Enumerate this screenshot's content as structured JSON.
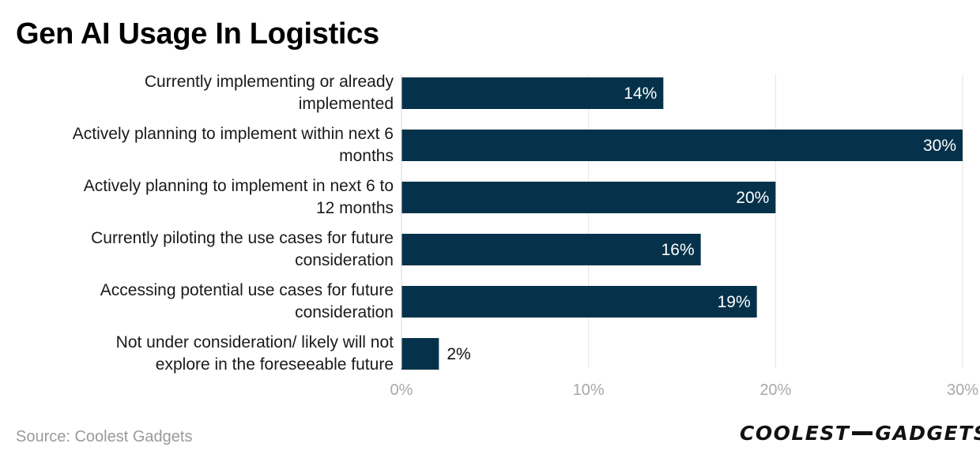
{
  "title": "Gen AI Usage In Logistics",
  "source": "Source: Coolest Gadgets",
  "logo": {
    "left": "COOLEST",
    "right": "GADGETS"
  },
  "colors": {
    "bar": "#05324a",
    "grid": "#e3e3e3",
    "tick": "#a8a8a8",
    "label_inside": "#ffffff",
    "label_outside": "#111111"
  },
  "chart_data": {
    "type": "bar",
    "orientation": "horizontal",
    "title": "Gen AI Usage In Logistics",
    "categories": [
      "Currently implementing or already implemented",
      "Actively planning to implement within next 6 months",
      "Actively planning to implement in next 6 to 12 months",
      "Currently piloting the use cases for future consideration",
      "Accessing potential use cases for future consideration",
      "Not under consideration/ likely will not explore in the foreseeable future"
    ],
    "category_lines": [
      [
        "Currently implementing or already",
        "implemented"
      ],
      [
        "Actively planning to implement within next 6",
        "months"
      ],
      [
        "Actively planning to implement in next 6 to",
        "12 months"
      ],
      [
        "Currently piloting the use cases for future",
        "consideration"
      ],
      [
        "Accessing potential use cases for future",
        "consideration"
      ],
      [
        "Not under consideration/ likely will not",
        "explore in the foreseeable future"
      ]
    ],
    "values": [
      14,
      30,
      20,
      16,
      19,
      2
    ],
    "value_labels": [
      "14%",
      "30%",
      "20%",
      "16%",
      "19%",
      "2%"
    ],
    "xlim": [
      0,
      30
    ],
    "xticks": [
      0,
      10,
      20,
      30
    ],
    "xtick_labels": [
      "0%",
      "10%",
      "20%",
      "30%"
    ],
    "grid": true,
    "xlabel": "",
    "ylabel": ""
  }
}
